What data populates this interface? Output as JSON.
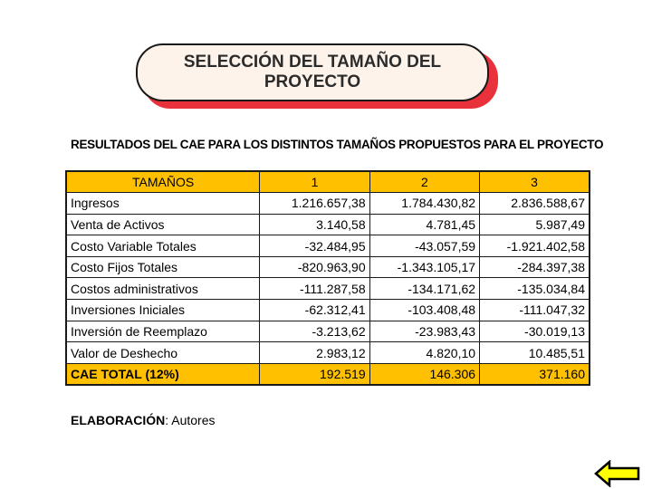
{
  "title": {
    "line1": "SELECCIÓN DEL TAMAÑO DEL",
    "line2": "PROYECTO"
  },
  "subtitle": "RESULTADOS DEL CAE PARA LOS DISTINTOS TAMAÑOS PROPUESTOS PARA EL PROYECTO",
  "table": {
    "headers": [
      "TAMAÑOS",
      "1",
      "2",
      "3"
    ],
    "rows": [
      {
        "label": "Ingresos",
        "values": [
          "1.216.657,38",
          "1.784.430,82",
          "2.836.588,67"
        ]
      },
      {
        "label": "Venta de Activos",
        "values": [
          "3.140,58",
          "4.781,45",
          "5.987,49"
        ]
      },
      {
        "label": "Costo Variable Totales",
        "values": [
          "-32.484,95",
          "-43.057,59",
          "-1.921.402,58"
        ]
      },
      {
        "label": "Costo Fijos Totales",
        "values": [
          "-820.963,90",
          "-1.343.105,17",
          "-284.397,38"
        ]
      },
      {
        "label": "Costos administrativos",
        "values": [
          "-111.287,58",
          "-134.171,62",
          "-135.034,84"
        ]
      },
      {
        "label": "Inversiones Iniciales",
        "values": [
          "-62.312,41",
          "-103.408,48",
          "-111.047,32"
        ]
      },
      {
        "label": "Inversión de Reemplazo",
        "values": [
          "-3.213,62",
          "-23.983,43",
          "-30.019,13"
        ]
      },
      {
        "label": "Valor de Deshecho",
        "values": [
          "2.983,12",
          "4.820,10",
          "10.485,51"
        ]
      }
    ],
    "total": {
      "label": "CAE TOTAL (12%)",
      "values": [
        "192.519",
        "146.306",
        "371.160"
      ]
    }
  },
  "footer": {
    "label": "ELABORACIÓN",
    "value": ": Autores"
  },
  "colors": {
    "header_bg": "#ffc000",
    "title_shadow": "#e8313a",
    "title_bg": "#fdf3ea",
    "arrow_fill": "#ffff00"
  },
  "icons": {
    "back": "left-arrow-icon"
  }
}
